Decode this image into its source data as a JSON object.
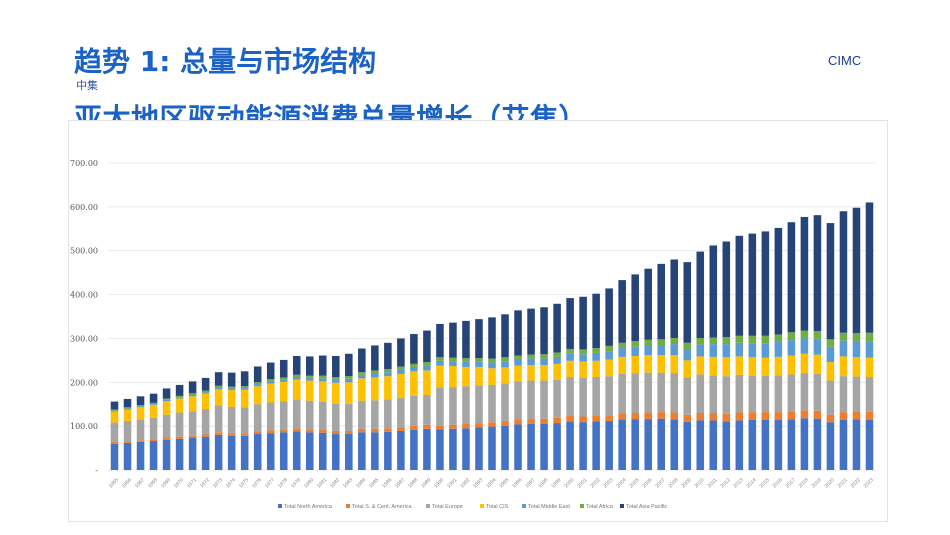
{
  "page": {
    "title": "趋势 1: 总量与市场结构",
    "brand": "CIMC",
    "subtitle": "中集",
    "heading": "亚太地区驱动能源消费总量增长（艾焦）"
  },
  "chart_data": {
    "type": "bar",
    "stacked": true,
    "years": [
      1965,
      1966,
      1967,
      1968,
      1969,
      1970,
      1971,
      1972,
      1973,
      1974,
      1975,
      1976,
      1977,
      1978,
      1979,
      1980,
      1981,
      1982,
      1983,
      1984,
      1985,
      1986,
      1987,
      1988,
      1989,
      1990,
      1991,
      1992,
      1993,
      1994,
      1995,
      1996,
      1997,
      1998,
      1999,
      2000,
      2001,
      2002,
      2003,
      2004,
      2005,
      2006,
      2007,
      2008,
      2009,
      2010,
      2011,
      2012,
      2013,
      2014,
      2015,
      2016,
      2017,
      2018,
      2019,
      2020,
      2021,
      2022,
      2023
    ],
    "ytick_labels": [
      "-",
      "100.00",
      "200.00",
      "300.00",
      "400.00",
      "500.00",
      "600.00",
      "700.00"
    ],
    "ylim": [
      0,
      700
    ],
    "ytick_step": 100,
    "grid": true,
    "legend_position": "bottom",
    "series": [
      {
        "name": "Total North America",
        "color": "#4472c4",
        "values": [
          60,
          62,
          64,
          66,
          69,
          71,
          73,
          76,
          80,
          78,
          78,
          82,
          84,
          86,
          88,
          86,
          85,
          82,
          82,
          86,
          86,
          87,
          89,
          92,
          94,
          93,
          94,
          95,
          97,
          99,
          101,
          104,
          105,
          105,
          107,
          111,
          109,
          111,
          112,
          115,
          116,
          116,
          117,
          115,
          110,
          113,
          113,
          111,
          113,
          114,
          114,
          114,
          115,
          118,
          117,
          109,
          114,
          115,
          114
        ]
      },
      {
        "name": "Total S. & Cent. America",
        "color": "#ed7d31",
        "values": [
          4,
          4,
          4,
          4,
          5,
          5,
          5,
          5,
          6,
          6,
          6,
          6,
          7,
          7,
          7,
          7,
          7,
          7,
          7,
          8,
          8,
          8,
          8,
          9,
          9,
          9,
          9,
          10,
          10,
          10,
          11,
          11,
          12,
          12,
          12,
          13,
          13,
          13,
          13,
          14,
          14,
          15,
          15,
          16,
          16,
          17,
          17,
          17,
          18,
          18,
          18,
          18,
          18,
          18,
          18,
          17,
          18,
          18,
          19
        ]
      },
      {
        "name": "Total Europe",
        "color": "#a5a5a5",
        "values": [
          44,
          46,
          47,
          49,
          52,
          55,
          56,
          58,
          61,
          60,
          59,
          62,
          63,
          64,
          66,
          65,
          63,
          62,
          62,
          64,
          65,
          66,
          67,
          68,
          68,
          86,
          86,
          86,
          86,
          85,
          85,
          87,
          87,
          87,
          87,
          88,
          88,
          88,
          89,
          90,
          91,
          91,
          90,
          90,
          85,
          88,
          86,
          86,
          86,
          83,
          83,
          84,
          85,
          85,
          84,
          78,
          82,
          80,
          79
        ]
      },
      {
        "name": "Total CIS",
        "color": "#ffc000",
        "values": [
          25,
          26,
          28,
          29,
          31,
          32,
          34,
          35,
          37,
          38,
          40,
          41,
          43,
          44,
          45,
          46,
          47,
          48,
          49,
          51,
          52,
          53,
          55,
          56,
          56,
          50,
          48,
          44,
          42,
          38,
          37,
          36,
          35,
          35,
          36,
          37,
          37,
          37,
          38,
          39,
          39,
          40,
          40,
          41,
          39,
          41,
          42,
          43,
          42,
          42,
          41,
          42,
          43,
          44,
          44,
          42,
          45,
          44,
          44
        ]
      },
      {
        "name": "Total Middle East",
        "color": "#5b9bd5",
        "values": [
          2,
          2,
          2,
          2,
          3,
          3,
          3,
          3,
          4,
          4,
          4,
          5,
          5,
          5,
          6,
          6,
          7,
          7,
          8,
          8,
          9,
          9,
          10,
          10,
          11,
          11,
          11,
          12,
          12,
          13,
          14,
          14,
          15,
          15,
          16,
          17,
          17,
          18,
          19,
          20,
          21,
          22,
          23,
          25,
          26,
          27,
          29,
          30,
          31,
          32,
          33,
          34,
          35,
          35,
          36,
          35,
          36,
          37,
          38
        ]
      },
      {
        "name": "Total Africa",
        "color": "#70ad47",
        "values": [
          3,
          3,
          3,
          3,
          3,
          3,
          4,
          4,
          4,
          4,
          4,
          4,
          5,
          5,
          5,
          5,
          6,
          6,
          6,
          6,
          7,
          7,
          7,
          7,
          8,
          8,
          8,
          8,
          8,
          9,
          9,
          9,
          9,
          10,
          10,
          10,
          11,
          11,
          12,
          12,
          13,
          13,
          13,
          14,
          14,
          15,
          15,
          16,
          16,
          17,
          17,
          17,
          18,
          18,
          18,
          17,
          18,
          18,
          19
        ]
      },
      {
        "name": "Total Asia Pacific",
        "color": "#264478",
        "values": [
          18,
          19,
          20,
          21,
          23,
          25,
          27,
          29,
          31,
          32,
          34,
          36,
          38,
          40,
          43,
          44,
          46,
          48,
          51,
          54,
          57,
          60,
          64,
          68,
          72,
          76,
          80,
          85,
          89,
          94,
          98,
          103,
          105,
          107,
          111,
          116,
          120,
          124,
          131,
          143,
          152,
          162,
          172,
          179,
          184,
          197,
          210,
          218,
          228,
          233,
          238,
          243,
          251,
          259,
          264,
          265,
          277,
          286,
          297
        ]
      }
    ]
  }
}
